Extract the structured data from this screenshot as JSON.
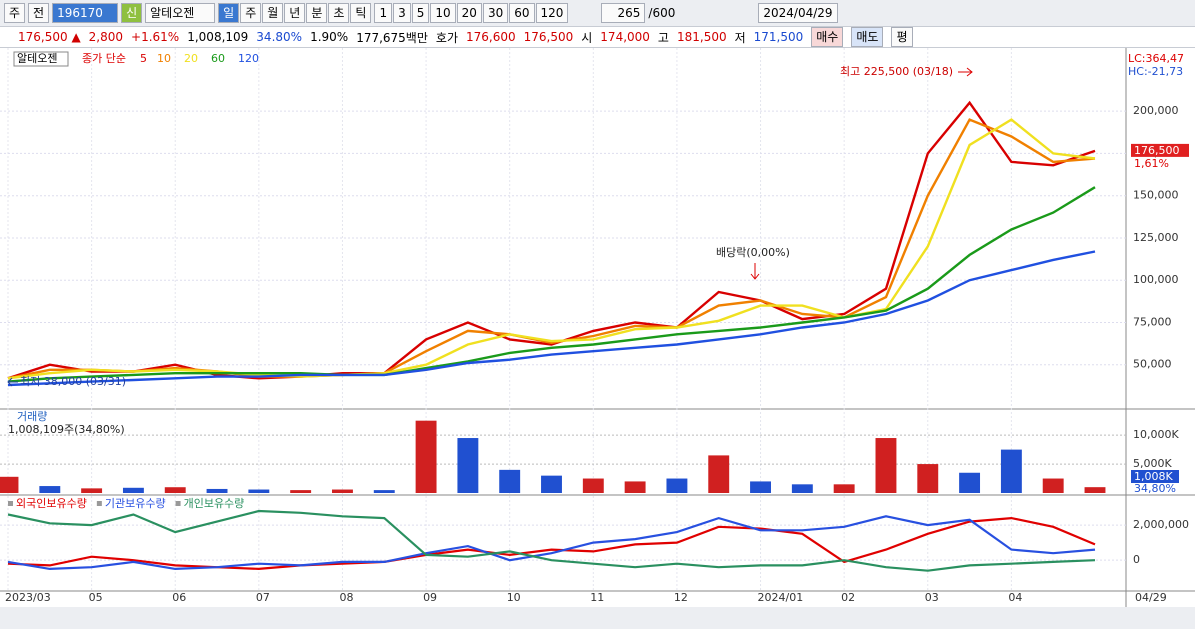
{
  "toolbar": {
    "market": "주",
    "view": "전",
    "code": "196170",
    "badge": "신",
    "name": "알테오젠",
    "periods": [
      "일",
      "주",
      "월",
      "년",
      "분",
      "초",
      "틱"
    ],
    "intervals": [
      "1",
      "3",
      "5",
      "10",
      "20",
      "30",
      "60",
      "120"
    ],
    "count": "265",
    "max": "/600",
    "date": "2024/04/29"
  },
  "quote": {
    "price": "176,500 ▲",
    "change": "2,800",
    "rate": "+1.61%",
    "volume": "1,008,109",
    "vol_ratio": "34.80%",
    "turnover": "1.90%",
    "amount": "177,675백만",
    "bid_label": "호가",
    "ask": "176,600",
    "bid": "176,500",
    "open_label": "시",
    "open": "174,000",
    "high_label": "고",
    "high": "181,500",
    "low_label": "저",
    "low": "171,500",
    "buy": "매수",
    "sell": "매도",
    "avg": "평"
  },
  "chart_data": [
    {
      "type": "line",
      "legend_name": "알테오젠",
      "legend_title": "종가 단순",
      "lc": "LC:364,47",
      "hc": "HC:-21,73",
      "current": "176,500",
      "current_rate": "1,61%",
      "annotations": [
        "최고 225,500 (03/18)",
        "최저 38,000 (03/31)",
        "배당락(0,00%)"
      ],
      "ylim": [
        25000,
        235000
      ],
      "yticks": [
        {
          "value": 50000,
          "label": "50,000"
        },
        {
          "value": 75000,
          "label": "75,000"
        },
        {
          "value": 100000,
          "label": "100,000"
        },
        {
          "value": 125000,
          "label": "125,000"
        },
        {
          "value": 150000,
          "label": "150,000"
        },
        {
          "value": 175000,
          "label": "175,000"
        },
        {
          "value": 200000,
          "label": "200,000"
        }
      ],
      "grid": true,
      "series": [
        {
          "name": "5",
          "color": "#d80000",
          "values": [
            42000,
            50000,
            46000,
            46000,
            50000,
            44000,
            42000,
            43000,
            45000,
            45000,
            65000,
            75000,
            65000,
            62000,
            70000,
            75000,
            72000,
            93000,
            88000,
            77000,
            80000,
            95000,
            175000,
            205000,
            170000,
            168000,
            176500
          ]
        },
        {
          "name": "10",
          "color": "#f08000",
          "values": [
            42000,
            47000,
            47000,
            46000,
            48000,
            46000,
            43000,
            43000,
            44000,
            45000,
            58000,
            70000,
            68000,
            63000,
            67000,
            73000,
            72000,
            85000,
            88000,
            80000,
            78000,
            90000,
            150000,
            195000,
            185000,
            170000,
            172000
          ]
        },
        {
          "name": "20",
          "color": "#f0e020",
          "values": [
            42000,
            45000,
            47000,
            46000,
            47000,
            46000,
            44000,
            43000,
            44000,
            45000,
            50000,
            62000,
            68000,
            64000,
            65000,
            71000,
            72000,
            76000,
            85000,
            85000,
            78000,
            83000,
            120000,
            180000,
            195000,
            175000,
            172000
          ]
        },
        {
          "name": "60",
          "color": "#1a9a1a",
          "values": [
            40000,
            42000,
            43000,
            44000,
            45000,
            45000,
            45000,
            45000,
            44000,
            44000,
            48000,
            52000,
            57000,
            60000,
            62000,
            65000,
            68000,
            70000,
            72000,
            75000,
            78000,
            82000,
            95000,
            115000,
            130000,
            140000,
            155000
          ]
        },
        {
          "name": "120",
          "color": "#2050e0",
          "values": [
            38000,
            39000,
            40000,
            41000,
            42000,
            43000,
            43000,
            44000,
            44000,
            44000,
            47000,
            51000,
            53000,
            56000,
            58000,
            60000,
            62000,
            65000,
            68000,
            72000,
            75000,
            80000,
            88000,
            100000,
            106000,
            112000,
            117000
          ]
        }
      ]
    },
    {
      "type": "bar",
      "title": "거래량",
      "subtitle": "1,008,109주(34,80%)",
      "current": "1,008K",
      "current_ratio": "34,80%",
      "ylim": [
        0,
        14000
      ],
      "yticks": [
        {
          "value": 5000,
          "label": "5,000K"
        },
        {
          "value": 10000,
          "label": "10,000K"
        }
      ],
      "values": [
        2800,
        1200,
        800,
        900,
        1000,
        700,
        600,
        500,
        600,
        500,
        12500,
        9500,
        4000,
        3000,
        2500,
        2000,
        2500,
        6500,
        2000,
        1500,
        1500,
        9500,
        5000,
        3500,
        7500,
        2500,
        1008
      ],
      "colors": [
        "#d02020",
        "#2050d0",
        "#d02020",
        "#2050d0",
        "#d02020",
        "#2050d0",
        "#2050d0",
        "#d02020",
        "#d02020",
        "#2050d0",
        "#d02020",
        "#2050d0",
        "#2050d0",
        "#2050d0",
        "#d02020",
        "#d02020",
        "#2050d0",
        "#d02020",
        "#2050d0",
        "#2050d0",
        "#d02020",
        "#d02020",
        "#d02020",
        "#2050d0",
        "#2050d0",
        "#d02020",
        "#d02020"
      ]
    },
    {
      "type": "line",
      "right_date": "04/29",
      "categories": [
        "2023/03",
        null,
        "05",
        null,
        "06",
        null,
        "07",
        null,
        "08",
        null,
        "09",
        null,
        "10",
        null,
        "11",
        null,
        "12",
        null,
        "2024/01",
        null,
        "02",
        null,
        "03",
        null,
        "04",
        null,
        null
      ],
      "ylim": [
        -1700000,
        3600000
      ],
      "yticks": [
        0,
        {
          "value": 2000000,
          "label": "2,000,000"
        }
      ],
      "grid": true,
      "series": [
        {
          "name": "외국인보유수량",
          "color": "#e00000",
          "values": [
            -200000,
            -300000,
            200000,
            0,
            -300000,
            -400000,
            -500000,
            -300000,
            -200000,
            -100000,
            300000,
            600000,
            300000,
            600000,
            500000,
            900000,
            1000000,
            1900000,
            1800000,
            1500000,
            -100000,
            600000,
            1500000,
            2200000,
            2400000,
            1900000,
            900000
          ]
        },
        {
          "name": "기관보유수량",
          "color": "#2850e0",
          "values": [
            -100000,
            -500000,
            -400000,
            -100000,
            -500000,
            -400000,
            -200000,
            -300000,
            -100000,
            -100000,
            400000,
            800000,
            0,
            400000,
            1000000,
            1200000,
            1600000,
            2400000,
            1700000,
            1700000,
            1900000,
            2500000,
            2000000,
            2300000,
            600000,
            400000,
            600000
          ]
        },
        {
          "name": "개인보유수량",
          "color": "#2a9060",
          "values": [
            2600000,
            2100000,
            2000000,
            2600000,
            1600000,
            2200000,
            2800000,
            2700000,
            2500000,
            2400000,
            300000,
            200000,
            500000,
            0,
            -200000,
            -400000,
            -200000,
            -400000,
            -300000,
            -300000,
            0,
            -400000,
            -600000,
            -300000,
            -200000,
            -100000,
            0
          ]
        }
      ]
    }
  ]
}
